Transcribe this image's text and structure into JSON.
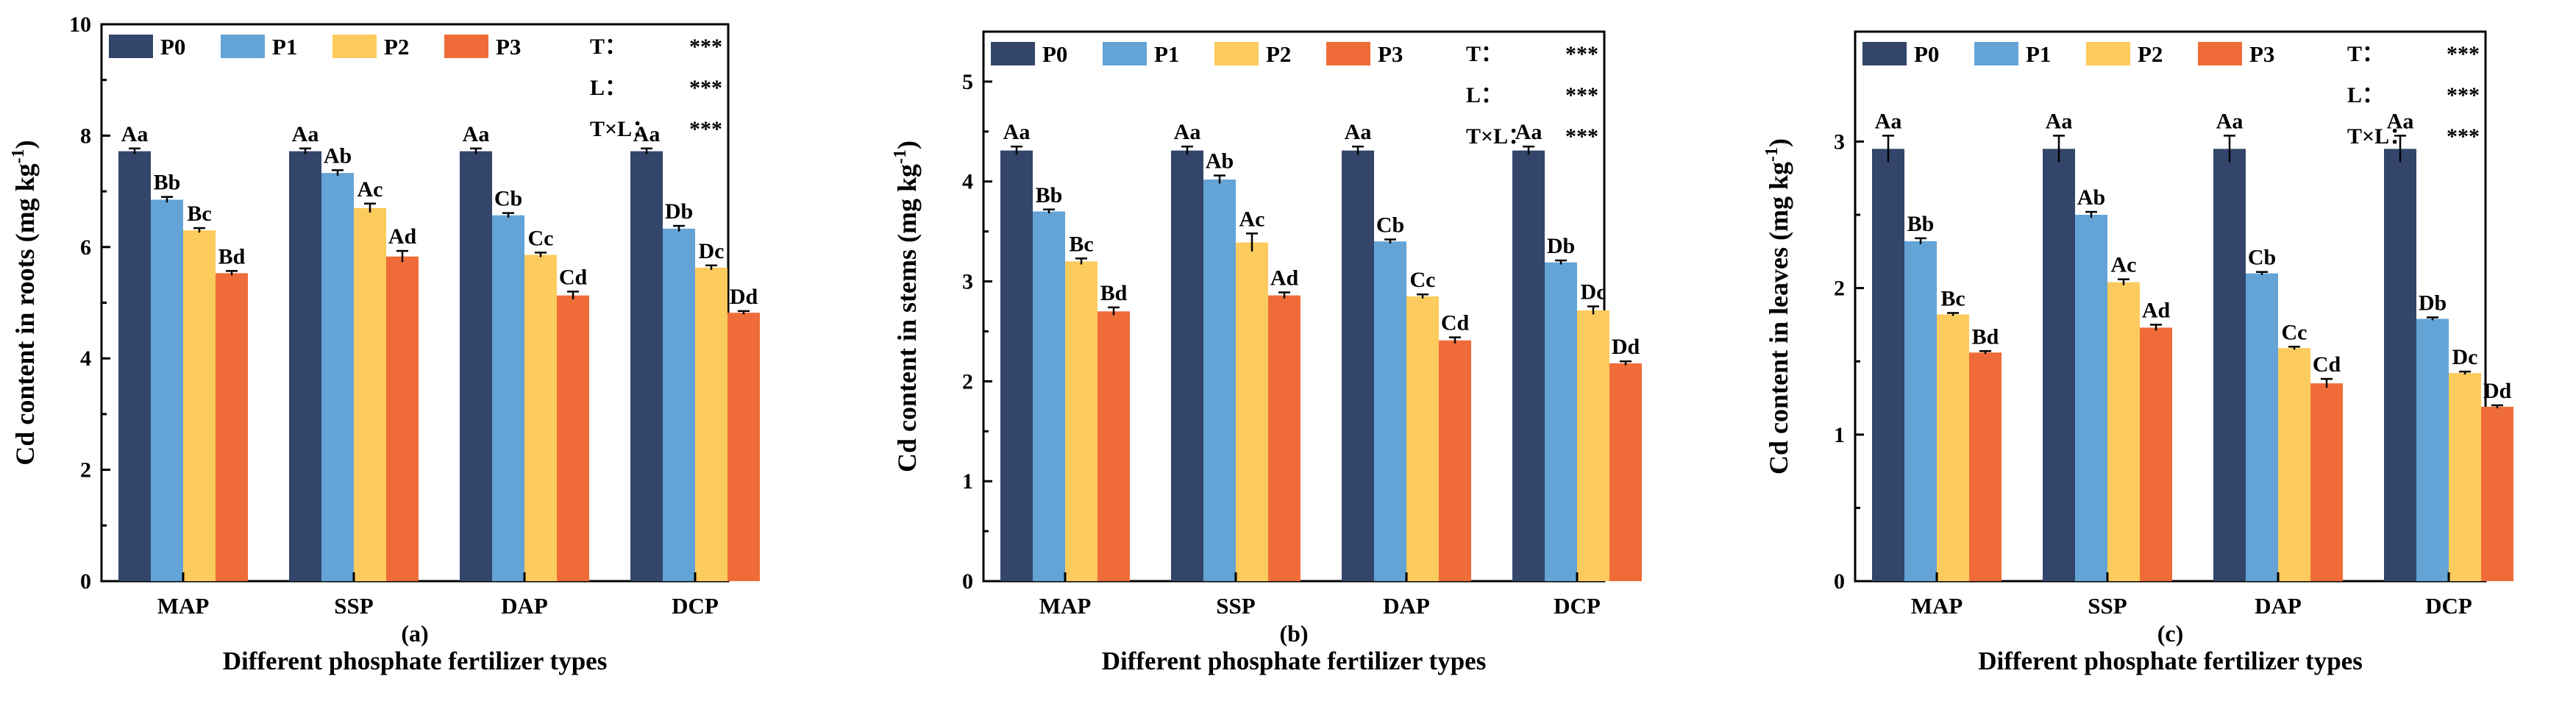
{
  "figure_colors": {
    "P0": "#33456b",
    "P1": "#64a3d5",
    "P2": "#fbcb5d",
    "P3": "#ef6c38"
  },
  "chart_data": [
    {
      "type": "bar",
      "panel_label": "(a)",
      "title": "",
      "xlabel": "Different phosphate fertilizer types",
      "ylabel_main": "Cd content in roots (mg kg",
      "ylabel_sup": "-1",
      "ylabel_close": ")",
      "ylim": [
        0,
        10
      ],
      "yticks": [
        0,
        2,
        4,
        6,
        8,
        10
      ],
      "categories": [
        "MAP",
        "SSP",
        "DAP",
        "DCP"
      ],
      "series": [
        {
          "name": "P0",
          "values": [
            7.72,
            7.72,
            7.72,
            7.72
          ],
          "errors": [
            0.05,
            0.05,
            0.05,
            0.05
          ],
          "letters": [
            "Aa",
            "Aa",
            "Aa",
            "Aa"
          ]
        },
        {
          "name": "P1",
          "values": [
            6.85,
            7.33,
            6.57,
            6.33
          ],
          "errors": [
            0.05,
            0.05,
            0.04,
            0.05
          ],
          "letters": [
            "Bb",
            "Ab",
            "Cb",
            "Db"
          ]
        },
        {
          "name": "P2",
          "values": [
            6.3,
            6.7,
            5.86,
            5.63
          ],
          "errors": [
            0.04,
            0.08,
            0.04,
            0.04
          ],
          "letters": [
            "Bc",
            "Ac",
            "Cc",
            "Dc"
          ]
        },
        {
          "name": "P3",
          "values": [
            5.53,
            5.83,
            5.13,
            4.82
          ],
          "errors": [
            0.04,
            0.1,
            0.07,
            0.03
          ],
          "letters": [
            "Bd",
            "Ad",
            "Cd",
            "Dd"
          ]
        }
      ],
      "stats": [
        {
          "label": "T：",
          "value": "***"
        },
        {
          "label": "L：",
          "value": "***"
        },
        {
          "label": "T×L：",
          "value": "***"
        }
      ]
    },
    {
      "type": "bar",
      "panel_label": "(b)",
      "title": "",
      "xlabel": "Different phosphate fertilizer types",
      "ylabel_main": "Cd content in stems (mg kg",
      "ylabel_sup": "-1",
      "ylabel_close": ")",
      "ylim": [
        0,
        5.5
      ],
      "yticks": [
        0,
        1,
        2,
        3,
        4,
        5
      ],
      "categories": [
        "MAP",
        "SSP",
        "DAP",
        "DCP"
      ],
      "series": [
        {
          "name": "P0",
          "values": [
            4.31,
            4.31,
            4.31,
            4.31
          ],
          "errors": [
            0.04,
            0.04,
            0.04,
            0.04
          ],
          "letters": [
            "Aa",
            "Aa",
            "Aa",
            "Aa"
          ]
        },
        {
          "name": "P1",
          "values": [
            3.7,
            4.02,
            3.4,
            3.19
          ],
          "errors": [
            0.02,
            0.04,
            0.02,
            0.02
          ],
          "letters": [
            "Bb",
            "Ab",
            "Cb",
            "Db"
          ]
        },
        {
          "name": "P2",
          "values": [
            3.2,
            3.39,
            2.85,
            2.71
          ],
          "errors": [
            0.03,
            0.09,
            0.02,
            0.04
          ],
          "letters": [
            "Bc",
            "Ac",
            "Cc",
            "Dc"
          ]
        },
        {
          "name": "P3",
          "values": [
            2.7,
            2.86,
            2.41,
            2.18
          ],
          "errors": [
            0.04,
            0.03,
            0.03,
            0.02
          ],
          "letters": [
            "Bd",
            "Ad",
            "Cd",
            "Dd"
          ]
        }
      ],
      "stats": [
        {
          "label": "T：",
          "value": "***"
        },
        {
          "label": "L：",
          "value": "***"
        },
        {
          "label": "T×L：",
          "value": "***"
        }
      ]
    },
    {
      "type": "bar",
      "panel_label": "(c)",
      "title": "",
      "xlabel": "Different phosphate fertilizer types",
      "ylabel_main": "Cd content in leaves (mg kg",
      "ylabel_sup": "-1",
      "ylabel_close": ")",
      "ylim": [
        0,
        3.75
      ],
      "yticks": [
        0,
        1,
        2,
        3
      ],
      "categories": [
        "MAP",
        "SSP",
        "DAP",
        "DCP"
      ],
      "series": [
        {
          "name": "P0",
          "values": [
            2.95,
            2.95,
            2.95,
            2.95
          ],
          "errors": [
            0.09,
            0.09,
            0.09,
            0.09
          ],
          "letters": [
            "Aa",
            "Aa",
            "Aa",
            "Aa"
          ]
        },
        {
          "name": "P1",
          "values": [
            2.32,
            2.5,
            2.1,
            1.79
          ],
          "errors": [
            0.02,
            0.02,
            0.01,
            0.01
          ],
          "letters": [
            "Bb",
            "Ab",
            "Cb",
            "Db"
          ]
        },
        {
          "name": "P2",
          "values": [
            1.82,
            2.04,
            1.59,
            1.42
          ],
          "errors": [
            0.01,
            0.02,
            0.01,
            0.01
          ],
          "letters": [
            "Bc",
            "Ac",
            "Cc",
            "Dc"
          ]
        },
        {
          "name": "P3",
          "values": [
            1.56,
            1.73,
            1.35,
            1.19
          ],
          "errors": [
            0.01,
            0.02,
            0.03,
            0.01
          ],
          "letters": [
            "Bd",
            "Ad",
            "Cd",
            "Dd"
          ]
        }
      ],
      "stats": [
        {
          "label": "T：",
          "value": "***"
        },
        {
          "label": "L：",
          "value": "***"
        },
        {
          "label": "T×L：",
          "value": "***"
        }
      ]
    }
  ]
}
